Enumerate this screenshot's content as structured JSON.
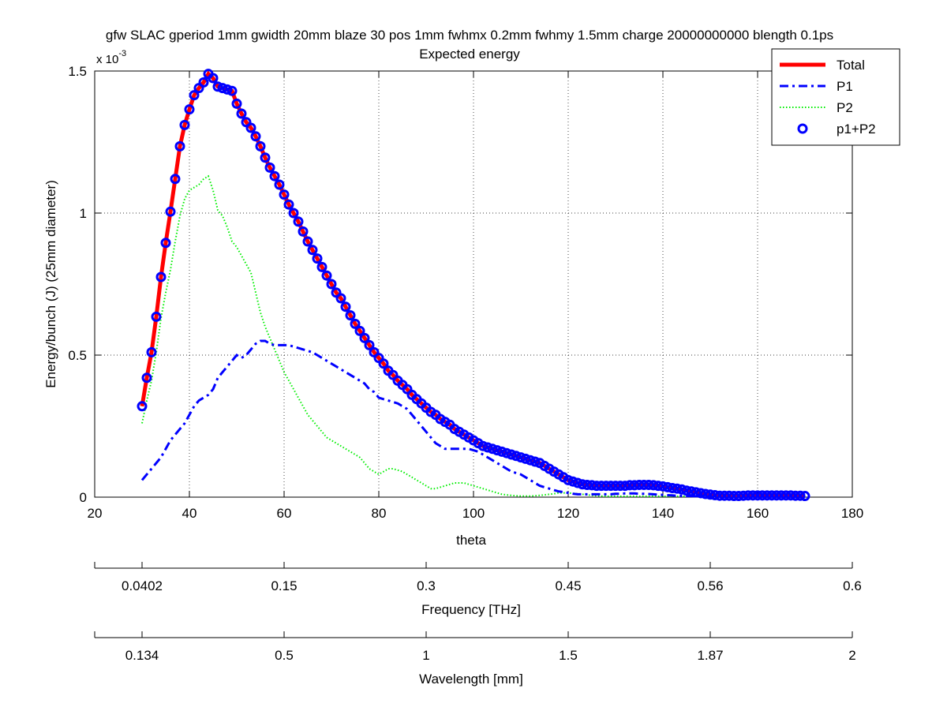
{
  "chart_data": {
    "type": "line",
    "title": "gfw SLAC gperiod 1mm gwidth 20mm blaze 30 pos 1mm fwhmx 0.2mm fwhmy 1.5mm charge 20000000000 blength 0.1ps",
    "subtitle": "Expected energy",
    "xlabel": "theta",
    "ylabel": "Energy/bunch (J) (25mm diameter)",
    "y_multiplier_label": "x 10",
    "y_multiplier_exponent": "-3",
    "xlim": [
      20,
      180
    ],
    "ylim": [
      0,
      1.5
    ],
    "x_ticks": [
      20,
      40,
      60,
      80,
      100,
      120,
      140,
      160,
      180
    ],
    "y_ticks": [
      0,
      0.5,
      1,
      1.5
    ],
    "y_tick_labels": [
      "0",
      "0.5",
      "1",
      "1.5"
    ],
    "grid": true,
    "legend_position": "top-right",
    "colors": {
      "total": "#ff0000",
      "p1": "#0000ff",
      "p2": "#00ee00",
      "sum": "#0000ff"
    },
    "series": [
      {
        "name": "Total",
        "style": "solid-thick",
        "color": "#ff0000",
        "key": "total"
      },
      {
        "name": "P1",
        "style": "dash-dot",
        "color": "#0000ff",
        "key": "p1"
      },
      {
        "name": "P2",
        "style": "dotted",
        "color": "#00ee00",
        "key": "p2"
      },
      {
        "name": "p1+P2",
        "style": "circle-markers",
        "color": "#0000ff",
        "key": "sum"
      }
    ],
    "x": [
      30,
      31,
      32,
      33,
      34,
      35,
      36,
      37,
      38,
      39,
      40,
      41,
      42,
      43,
      44,
      45,
      46,
      47,
      48,
      49,
      50,
      51,
      52,
      53,
      54,
      55,
      56,
      57,
      58,
      59,
      60,
      61,
      62,
      63,
      64,
      65,
      66,
      67,
      68,
      69,
      70,
      71,
      72,
      73,
      74,
      75,
      76,
      77,
      78,
      79,
      80,
      81,
      82,
      83,
      84,
      85,
      86,
      87,
      88,
      89,
      90,
      91,
      92,
      93,
      94,
      95,
      96,
      97,
      98,
      99,
      100,
      101,
      102,
      103,
      104,
      105,
      106,
      107,
      108,
      109,
      110,
      111,
      112,
      113,
      114,
      115,
      116,
      117,
      118,
      119,
      120,
      121,
      122,
      123,
      124,
      125,
      126,
      127,
      128,
      129,
      130,
      131,
      132,
      133,
      134,
      135,
      136,
      137,
      138,
      139,
      140,
      141,
      142,
      143,
      144,
      145,
      146,
      147,
      148,
      149,
      150,
      151,
      152,
      153,
      154,
      155,
      156,
      157,
      158,
      159,
      160,
      161,
      162,
      163,
      164,
      165,
      166,
      167,
      168,
      169,
      170
    ],
    "total": [
      0.32,
      0.42,
      0.51,
      0.635,
      0.775,
      0.895,
      1.005,
      1.12,
      1.235,
      1.31,
      1.365,
      1.415,
      1.44,
      1.46,
      1.49,
      1.475,
      1.445,
      1.44,
      1.435,
      1.43,
      1.385,
      1.35,
      1.32,
      1.3,
      1.27,
      1.235,
      1.195,
      1.16,
      1.13,
      1.1,
      1.065,
      1.03,
      1.0,
      0.97,
      0.935,
      0.9,
      0.87,
      0.84,
      0.81,
      0.78,
      0.75,
      0.72,
      0.7,
      0.67,
      0.64,
      0.61,
      0.585,
      0.56,
      0.535,
      0.51,
      0.49,
      0.47,
      0.445,
      0.43,
      0.41,
      0.395,
      0.38,
      0.36,
      0.345,
      0.33,
      0.315,
      0.3,
      0.29,
      0.275,
      0.265,
      0.255,
      0.24,
      0.23,
      0.22,
      0.21,
      0.2,
      0.19,
      0.18,
      0.175,
      0.17,
      0.165,
      0.16,
      0.155,
      0.15,
      0.145,
      0.14,
      0.135,
      0.13,
      0.125,
      0.12,
      0.11,
      0.1,
      0.09,
      0.08,
      0.07,
      0.06,
      0.055,
      0.05,
      0.045,
      0.043,
      0.042,
      0.04,
      0.04,
      0.04,
      0.04,
      0.04,
      0.04,
      0.04,
      0.042,
      0.042,
      0.043,
      0.043,
      0.043,
      0.042,
      0.04,
      0.038,
      0.035,
      0.032,
      0.03,
      0.027,
      0.023,
      0.02,
      0.017,
      0.014,
      0.011,
      0.009,
      0.007,
      0.005,
      0.005,
      0.005,
      0.004,
      0.004,
      0.005,
      0.006,
      0.006,
      0.006,
      0.006,
      0.006,
      0.006,
      0.006,
      0.006,
      0.006,
      0.006,
      0.005,
      0.005,
      0.004
    ],
    "p1": [
      0.06,
      0.08,
      0.1,
      0.12,
      0.14,
      0.17,
      0.2,
      0.22,
      0.24,
      0.26,
      0.29,
      0.32,
      0.34,
      0.35,
      0.36,
      0.38,
      0.42,
      0.44,
      0.46,
      0.48,
      0.5,
      0.49,
      0.5,
      0.52,
      0.54,
      0.55,
      0.55,
      0.54,
      0.535,
      0.535,
      0.535,
      0.535,
      0.53,
      0.525,
      0.52,
      0.515,
      0.51,
      0.5,
      0.49,
      0.48,
      0.47,
      0.46,
      0.45,
      0.44,
      0.43,
      0.42,
      0.41,
      0.4,
      0.38,
      0.37,
      0.35,
      0.345,
      0.34,
      0.335,
      0.33,
      0.32,
      0.31,
      0.29,
      0.27,
      0.25,
      0.23,
      0.21,
      0.19,
      0.18,
      0.17,
      0.17,
      0.17,
      0.17,
      0.17,
      0.17,
      0.165,
      0.16,
      0.15,
      0.14,
      0.13,
      0.12,
      0.11,
      0.1,
      0.09,
      0.085,
      0.08,
      0.07,
      0.06,
      0.05,
      0.04,
      0.035,
      0.03,
      0.025,
      0.02,
      0.018,
      0.015,
      0.012,
      0.01,
      0.01,
      0.01,
      0.01,
      0.01,
      0.01,
      0.01,
      0.01,
      0.012,
      0.012,
      0.013,
      0.013,
      0.013,
      0.012,
      0.012,
      0.011,
      0.01,
      0.009,
      0.008,
      0.007,
      0.006,
      0.005,
      0.005,
      0.004,
      0.004,
      0.003,
      0.003,
      0.003,
      0.003,
      0.002,
      0.002,
      0.002,
      0.002,
      0.002,
      0.002,
      0.002,
      0.002,
      0.002,
      0.002,
      0.002,
      0.002,
      0.002,
      0.002,
      0.002,
      0.002,
      0.002,
      0.002,
      0.002,
      0.002
    ],
    "p2": [
      0.26,
      0.34,
      0.41,
      0.51,
      0.63,
      0.72,
      0.8,
      0.9,
      0.99,
      1.05,
      1.08,
      1.09,
      1.1,
      1.12,
      1.13,
      1.08,
      1.01,
      0.99,
      0.95,
      0.9,
      0.88,
      0.85,
      0.82,
      0.79,
      0.72,
      0.65,
      0.6,
      0.56,
      0.52,
      0.48,
      0.44,
      0.41,
      0.38,
      0.35,
      0.32,
      0.29,
      0.27,
      0.25,
      0.23,
      0.21,
      0.2,
      0.19,
      0.18,
      0.17,
      0.16,
      0.15,
      0.14,
      0.12,
      0.1,
      0.09,
      0.08,
      0.09,
      0.1,
      0.1,
      0.095,
      0.09,
      0.08,
      0.07,
      0.06,
      0.05,
      0.04,
      0.03,
      0.03,
      0.035,
      0.04,
      0.045,
      0.05,
      0.05,
      0.05,
      0.045,
      0.04,
      0.035,
      0.03,
      0.025,
      0.02,
      0.015,
      0.01,
      0.008,
      0.006,
      0.005,
      0.004,
      0.004,
      0.004,
      0.005,
      0.006,
      0.008,
      0.01,
      0.012,
      0.015,
      0.015,
      0.015,
      0.013,
      0.012,
      0.01,
      0.008,
      0.006,
      0.005,
      0.004,
      0.003,
      0.003,
      0.003,
      0.003,
      0.003,
      0.003,
      0.003,
      0.003,
      0.003,
      0.003,
      0.003,
      0.003,
      0.003,
      0.003,
      0.003,
      0.003,
      0.003,
      0.003,
      0.003,
      0.003,
      0.003,
      0.003,
      0.003,
      0.003,
      0.003,
      0.003,
      0.003,
      0.003,
      0.003,
      0.003,
      0.003,
      0.003,
      0.003,
      0.003,
      0.003,
      0.003,
      0.003,
      0.003,
      0.003,
      0.003,
      0.003,
      0.003,
      0.003
    ],
    "sum_marker_step": 1,
    "secondary_axes": [
      {
        "label": "Frequency [THz]",
        "tick_theta": [
          30,
          60,
          90,
          120,
          150,
          180
        ],
        "tick_labels": [
          "0.0402",
          "0.15",
          "0.3",
          "0.45",
          "0.56",
          "0.6"
        ],
        "range_theta": [
          20,
          180
        ]
      },
      {
        "label": "Wavelength [mm]",
        "tick_theta": [
          30,
          60,
          90,
          120,
          150,
          180
        ],
        "tick_labels": [
          "0.134",
          "0.5",
          "1",
          "1.5",
          "1.87",
          "2"
        ],
        "range_theta": [
          20,
          180
        ]
      }
    ]
  }
}
